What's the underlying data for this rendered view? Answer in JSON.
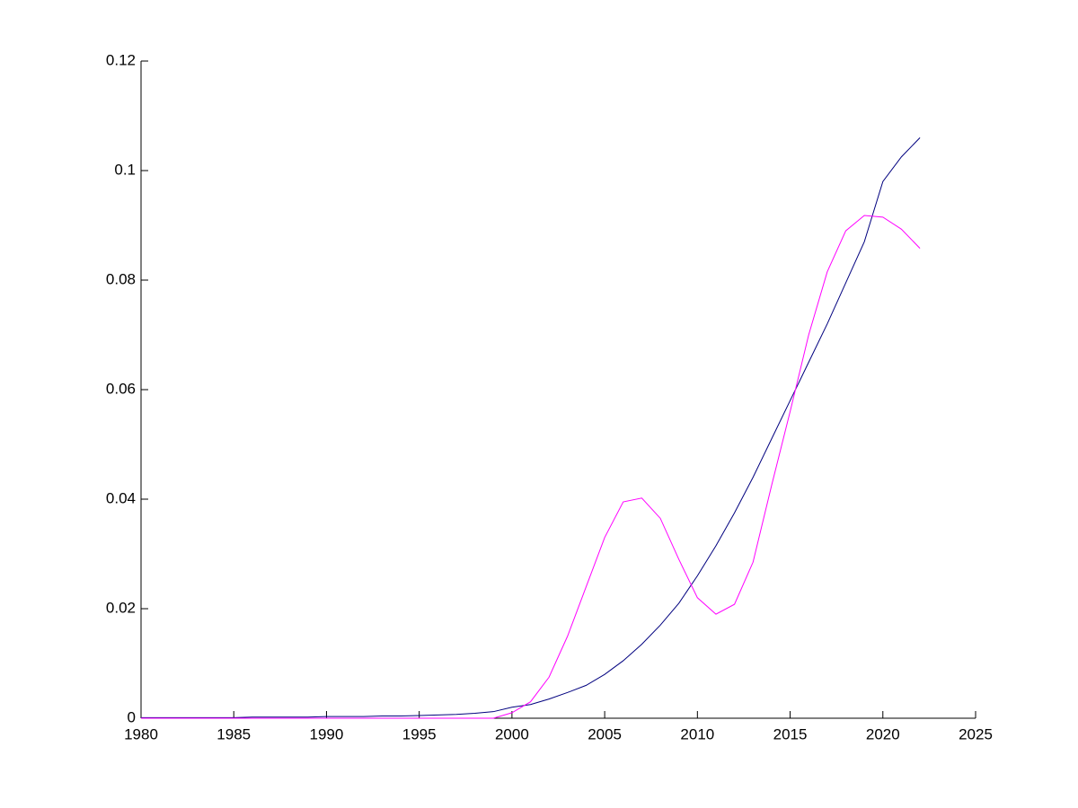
{
  "chart_data": {
    "type": "line",
    "x": [
      1980,
      1981,
      1982,
      1983,
      1984,
      1985,
      1986,
      1987,
      1988,
      1989,
      1990,
      1991,
      1992,
      1993,
      1994,
      1995,
      1996,
      1997,
      1998,
      1999,
      2000,
      2001,
      2002,
      2003,
      2004,
      2005,
      2006,
      2007,
      2008,
      2009,
      2010,
      2011,
      2012,
      2013,
      2014,
      2015,
      2016,
      2017,
      2018,
      2019,
      2020,
      2021,
      2022
    ],
    "series": [
      {
        "color": "#00007f",
        "values": [
          0.0001,
          0.0001,
          0.0001,
          0.0001,
          0.0001,
          0.0001,
          0.0002,
          0.0002,
          0.0002,
          0.0002,
          0.0003,
          0.0003,
          0.0003,
          0.0004,
          0.0004,
          0.0005,
          0.0006,
          0.0007,
          0.0009,
          0.0012,
          0.002,
          0.0025,
          0.0035,
          0.0047,
          0.006,
          0.008,
          0.0105,
          0.0135,
          0.017,
          0.021,
          0.026,
          0.0315,
          0.0375,
          0.044,
          0.051,
          0.058,
          0.065,
          0.072,
          0.0795,
          0.087,
          0.098,
          0.1025,
          0.106
        ]
      },
      {
        "color": "#ff00ff",
        "values": [
          0,
          0,
          0,
          0,
          0,
          0,
          0,
          0,
          0,
          0,
          0,
          0,
          0,
          0,
          0,
          0,
          0,
          0,
          0,
          0,
          0.001,
          0.003,
          0.0075,
          0.015,
          0.024,
          0.033,
          0.0395,
          0.0402,
          0.0365,
          0.029,
          0.022,
          0.019,
          0.0208,
          0.0285,
          0.0425,
          0.056,
          0.07,
          0.0815,
          0.089,
          0.0918,
          0.0915,
          0.0893,
          0.0858
        ]
      }
    ],
    "xlim": [
      1980,
      2025
    ],
    "xticks": [
      1980,
      1985,
      1990,
      1995,
      2000,
      2005,
      2010,
      2015,
      2020,
      2025
    ],
    "ylim": [
      0,
      0.12
    ],
    "yticks": [
      0,
      0.02,
      0.04,
      0.06,
      0.08,
      0.1,
      0.12
    ]
  }
}
